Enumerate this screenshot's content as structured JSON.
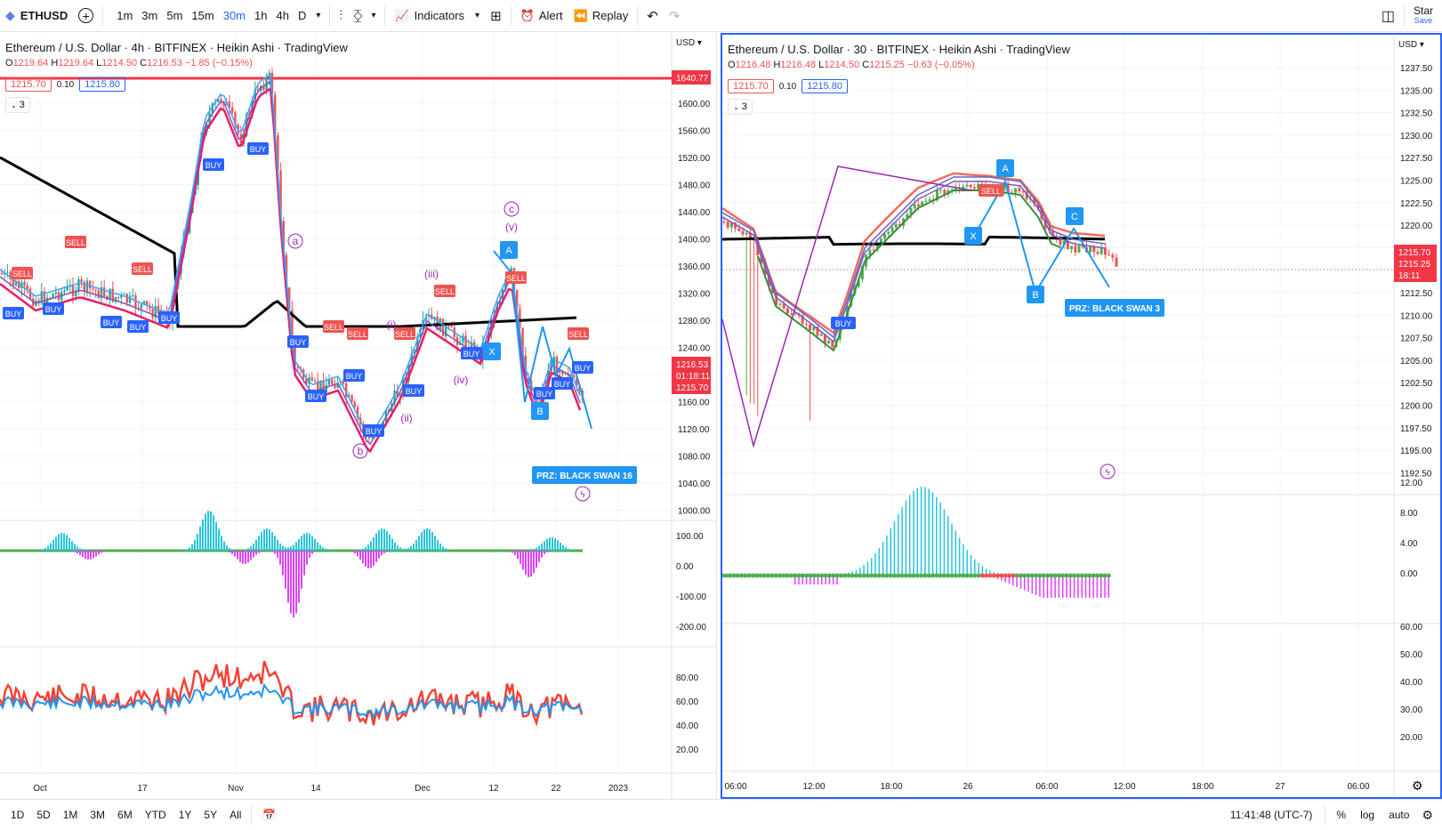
{
  "topbar": {
    "symbol": "ETHUSD",
    "intervals": [
      "1m",
      "3m",
      "5m",
      "15m",
      "30m",
      "1h",
      "4h",
      "D"
    ],
    "active_interval": "30m",
    "indicators_label": "Indicators",
    "alert_label": "Alert",
    "replay_label": "Replay",
    "star_label": "Star",
    "save_label": "Save"
  },
  "left": {
    "title": "Ethereum / U.S. Dollar · 4h · BITFINEX · Heikin Ashi · TradingView",
    "ohlc": {
      "o": "1219.64",
      "h": "1219.64",
      "l": "1214.50",
      "c": "1216.53",
      "chg": "−1.85 (−0.15%)"
    },
    "sell_price": "1215.70",
    "spread": "0.10",
    "buy_price": "1215.80",
    "collapse": "3",
    "currency": "USD",
    "price_ticks": [
      "1600.00",
      "1560.00",
      "1520.00",
      "1480.00",
      "1440.00",
      "1400.00",
      "1360.00",
      "1320.00",
      "1280.00",
      "1240.00",
      "1200.00",
      "1160.00",
      "1120.00",
      "1080.00",
      "1040.00",
      "1000.00"
    ],
    "level_label": "1640.77",
    "last_price": "1216.53",
    "countdown": "01:18:11",
    "bid_label": "1215.70",
    "osc_ticks": [
      "100.00",
      "0.00",
      "-100.00",
      "-200.00"
    ],
    "rsi_ticks": [
      "80.00",
      "60.00",
      "40.00",
      "20.00"
    ],
    "time_ticks": [
      "Oct",
      "17",
      "Nov",
      "14",
      "Dec",
      "12",
      "22",
      "2023"
    ],
    "prz_label": "PRZ: BLACK SWAN 16",
    "wave_labels": [
      "a",
      "b",
      "c",
      "(v)",
      "(iii)",
      "(i)",
      "(ii)",
      "(iv)"
    ],
    "pattern_labels": [
      "A",
      "X",
      "B"
    ]
  },
  "right": {
    "title": "Ethereum / U.S. Dollar · 30 · BITFINEX · Heikin Ashi · TradingView",
    "ohlc": {
      "o": "1216.48",
      "h": "1216.48",
      "l": "1214.50",
      "c": "1215.25",
      "chg": "−0.63 (−0.05%)"
    },
    "sell_price": "1215.70",
    "spread": "0.10",
    "buy_price": "1215.80",
    "collapse": "3",
    "currency": "USD",
    "price_ticks": [
      "1237.50",
      "1235.00",
      "1232.50",
      "1230.00",
      "1227.50",
      "1225.00",
      "1222.50",
      "1220.00",
      "1217.50",
      "1215.00",
      "1212.50",
      "1210.00",
      "1207.50",
      "1205.00",
      "1202.50",
      "1200.00",
      "1197.50",
      "1195.00",
      "1192.50"
    ],
    "last_price": "1215.70",
    "close_price": "1215.25",
    "countdown": "18:11",
    "osc_ticks": [
      "12.00",
      "8.00",
      "4.00",
      "0.00"
    ],
    "rsi_ticks": [
      "60.00",
      "50.00",
      "40.00",
      "30.00",
      "20.00"
    ],
    "time_ticks": [
      "06:00",
      "12:00",
      "18:00",
      "26",
      "06:00",
      "12:00",
      "18:00",
      "27",
      "06:00"
    ],
    "prz_label": "PRZ: BLACK SWAN 3",
    "pattern_labels": [
      "A",
      "X",
      "B",
      "C"
    ],
    "signal_labels": [
      "SELL",
      "BUY"
    ]
  },
  "bottombar": {
    "ranges": [
      "1D",
      "5D",
      "1M",
      "3M",
      "6M",
      "YTD",
      "1Y",
      "5Y",
      "All"
    ],
    "clock": "11:41:48 (UTC-7)",
    "pct": "%",
    "log": "log",
    "auto": "auto"
  }
}
